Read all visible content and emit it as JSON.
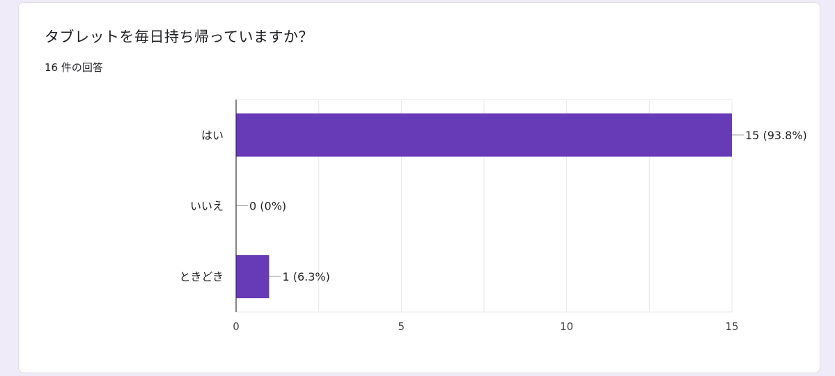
{
  "question": {
    "title": "タブレットを毎日持ち帰っていますか？",
    "response_count": "16 件の回答"
  },
  "colors": {
    "bar": "#673ab7",
    "background": "#f0ebf8",
    "grid": "#e8e8e8",
    "axis": "#333333"
  },
  "chart_data": {
    "type": "bar",
    "orientation": "horizontal",
    "categories": [
      "はい",
      "いいえ",
      "ときどき"
    ],
    "values": [
      15,
      0,
      1
    ],
    "value_labels": [
      "15 (93.8%)",
      "0 (0%)",
      "1 (6.3%)"
    ],
    "xlim": [
      0,
      15
    ],
    "xticks": [
      0,
      5,
      10,
      15
    ],
    "grid": true,
    "title": "",
    "xlabel": "",
    "ylabel": ""
  }
}
